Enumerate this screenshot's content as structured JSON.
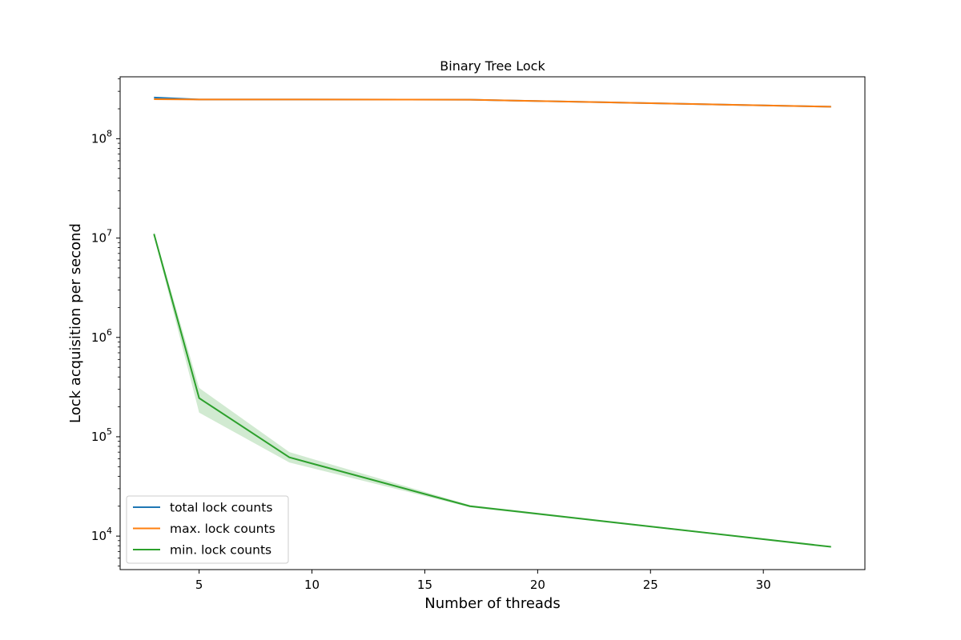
{
  "chart_data": {
    "type": "line",
    "title": "Binary Tree Lock",
    "xlabel": "Number of threads",
    "ylabel": "Lock acquisition per second",
    "yscale": "log",
    "xlim": [
      1.5,
      34.5
    ],
    "ylim": [
      4600,
      420000000
    ],
    "x_ticks": [
      5,
      10,
      15,
      20,
      25,
      30
    ],
    "y_ticks": [
      {
        "value": 10000,
        "base": "10",
        "exp": "4"
      },
      {
        "value": 100000,
        "base": "10",
        "exp": "5"
      },
      {
        "value": 1000000,
        "base": "10",
        "exp": "6"
      },
      {
        "value": 10000000,
        "base": "10",
        "exp": "7"
      },
      {
        "value": 100000000,
        "base": "10",
        "exp": "8"
      }
    ],
    "legend_position": "lower-left",
    "grid": false,
    "series": [
      {
        "name": "total lock counts",
        "color": "#1f77b4",
        "x": [
          3,
          5,
          9,
          17,
          33
        ],
        "values": [
          260000000,
          248000000,
          248000000,
          247000000,
          210000000
        ]
      },
      {
        "name": "max. lock counts",
        "color": "#ff7f0e",
        "x": [
          3,
          5,
          9,
          17,
          33
        ],
        "values": [
          250000000,
          248000000,
          248000000,
          247000000,
          210000000
        ]
      },
      {
        "name": "min. lock counts",
        "color": "#2ca02c",
        "x": [
          3,
          5,
          9,
          17,
          33
        ],
        "values": [
          11000000,
          245000,
          62000,
          20000,
          7800
        ],
        "band_lower": [
          10500000,
          175000,
          55000,
          19500,
          7700
        ],
        "band_upper": [
          11500000,
          310000,
          70000,
          20500,
          7900
        ]
      }
    ]
  }
}
